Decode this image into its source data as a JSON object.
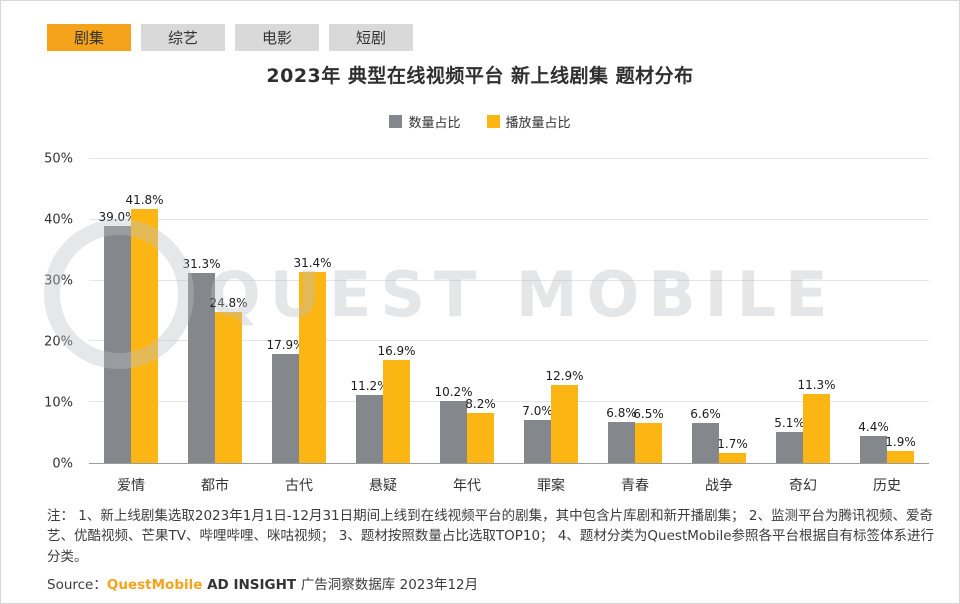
{
  "tabs": [
    {
      "label": "剧集",
      "active": true
    },
    {
      "label": "综艺",
      "active": false
    },
    {
      "label": "电影",
      "active": false
    },
    {
      "label": "短剧",
      "active": false
    }
  ],
  "title": "2023年 典型在线视频平台 新上线剧集 题材分布",
  "watermark": "QUEST MOBILE",
  "colors": {
    "accent_orange": "#F5A31A",
    "tab_inactive_bg": "#D9D9D9",
    "bar_gray": "#84878B",
    "bar_yellow": "#FCB614"
  },
  "chart_data": {
    "type": "bar",
    "title": "2023年 典型在线视频平台 新上线剧集 题材分布",
    "categories": [
      "爱情",
      "都市",
      "古代",
      "悬疑",
      "年代",
      "罪案",
      "青春",
      "战争",
      "奇幻",
      "历史"
    ],
    "series": [
      {
        "name": "数量占比",
        "color": "#84878B",
        "values": [
          39.0,
          31.3,
          17.9,
          11.2,
          10.2,
          7.0,
          6.8,
          6.6,
          5.1,
          4.4
        ]
      },
      {
        "name": "播放量占比",
        "color": "#FCB614",
        "values": [
          41.8,
          24.8,
          31.4,
          16.9,
          8.2,
          12.9,
          6.5,
          1.7,
          11.3,
          1.9
        ]
      }
    ],
    "xlabel": "",
    "ylabel": "",
    "ylim": [
      0,
      50
    ],
    "yticks": [
      0,
      10,
      20,
      30,
      40,
      50
    ],
    "ytick_suffix": "%",
    "grid": true,
    "legend_position": "top"
  },
  "footer": {
    "note": "注：  1、新上线剧集选取2023年1月1日-12月31日期间上线到在线视频平台的剧集，其中包含片库剧和新开播剧集；  2、监测平台为腾讯视频、爱奇艺、优酷视频、芒果TV、哔哩哔哩、咪咕视频；  3、题材按照数量占比选取TOP10；  4、题材分类为QuestMobile参照各平台根据自有标签体系进行分类。",
    "source_prefix": "Source：",
    "source_brand": "QuestMobile ",
    "source_mid": "AD INSIGHT ",
    "source_rest": "广告洞察数据库 2023年12月"
  }
}
